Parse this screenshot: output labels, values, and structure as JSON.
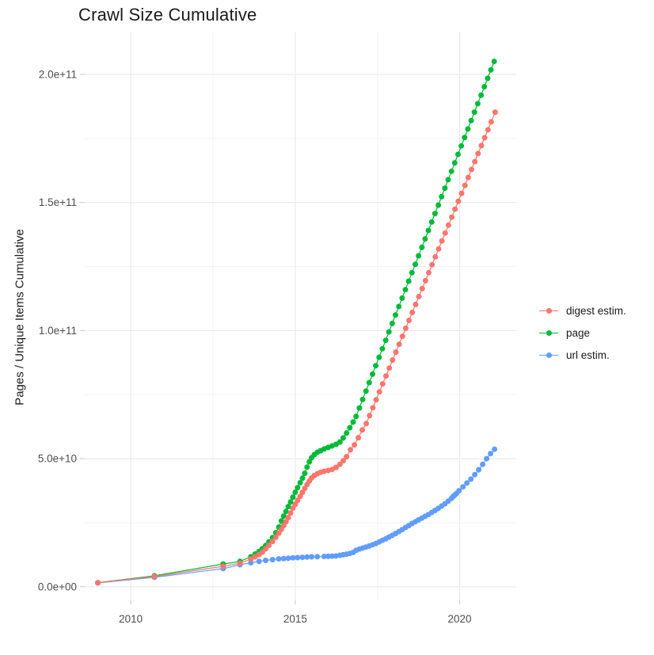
{
  "title": "Crawl Size Cumulative",
  "chart_data": {
    "type": "scatter-line",
    "title": "Crawl Size Cumulative",
    "xlabel": "",
    "ylabel": "Pages / Unique Items Cumulative",
    "legend_position": "right",
    "grid": true,
    "xlim": [
      2008.6,
      2021.72
    ],
    "ylim_e9": [
      -5.3,
      216.7
    ],
    "x_ticks": [
      {
        "value": 2010,
        "label": "2010"
      },
      {
        "value": 2015,
        "label": "2015"
      },
      {
        "value": 2020,
        "label": "2020"
      }
    ],
    "x_minor": [
      2012.5,
      2017.5
    ],
    "y_ticks_e9": [
      {
        "value": 0,
        "label": "0.0e+00"
      },
      {
        "value": 50,
        "label": "5.0e+10"
      },
      {
        "value": 100,
        "label": "1.0e+11"
      },
      {
        "value": 150,
        "label": "1.5e+11"
      },
      {
        "value": 200,
        "label": "2.0e+11"
      }
    ],
    "y_minor_e9": [
      25,
      75,
      125,
      175
    ],
    "value_unit": 1000000000.0,
    "colors": {
      "grid_major": "#ebebeb",
      "grid_minor": "#f3f3f3",
      "tick": "#c9c9c9",
      "tick_label": "#4d4d4d"
    },
    "series": [
      {
        "name": "digest estim.",
        "color": "#F8766D",
        "points_year_e9": [
          [
            2009.0,
            1.6
          ],
          [
            2010.72,
            4.0
          ],
          [
            2012.81,
            8.0
          ],
          [
            2013.32,
            9.2
          ],
          [
            2013.65,
            10.8
          ],
          [
            2013.78,
            11.7
          ],
          [
            2013.9,
            12.6
          ],
          [
            2014.0,
            13.5
          ],
          [
            2014.1,
            14.8
          ],
          [
            2014.2,
            16.2
          ],
          [
            2014.31,
            17.7
          ],
          [
            2014.41,
            19.3
          ],
          [
            2014.5,
            20.9
          ],
          [
            2014.58,
            22.4
          ],
          [
            2014.65,
            23.9
          ],
          [
            2014.72,
            25.4
          ],
          [
            2014.79,
            27.0
          ],
          [
            2014.86,
            28.8
          ],
          [
            2014.93,
            30.7
          ],
          [
            2015.0,
            32.2
          ],
          [
            2015.07,
            33.7
          ],
          [
            2015.15,
            35.3
          ],
          [
            2015.22,
            36.9
          ],
          [
            2015.29,
            38.4
          ],
          [
            2015.36,
            39.9
          ],
          [
            2015.43,
            41.3
          ],
          [
            2015.5,
            42.5
          ],
          [
            2015.58,
            43.4
          ],
          [
            2015.67,
            44.1
          ],
          [
            2015.77,
            44.7
          ],
          [
            2015.88,
            45.1
          ],
          [
            2016.0,
            45.4
          ],
          [
            2016.12,
            45.8
          ],
          [
            2016.24,
            46.6
          ],
          [
            2016.36,
            47.8
          ],
          [
            2016.46,
            49.2
          ],
          [
            2016.56,
            50.8
          ],
          [
            2016.68,
            53.5
          ],
          [
            2016.8,
            55.4
          ],
          [
            2016.92,
            58.2
          ],
          [
            2017.04,
            61.2
          ],
          [
            2017.16,
            63.7
          ],
          [
            2017.26,
            66.8
          ],
          [
            2017.36,
            69.9
          ],
          [
            2017.46,
            73.0
          ],
          [
            2017.56,
            76.1
          ],
          [
            2017.66,
            79.2
          ],
          [
            2017.76,
            82.3
          ],
          [
            2017.86,
            85.4
          ],
          [
            2017.96,
            88.5
          ],
          [
            2018.06,
            91.6
          ],
          [
            2018.16,
            94.7
          ],
          [
            2018.26,
            97.8
          ],
          [
            2018.36,
            100.9
          ],
          [
            2018.46,
            104.0
          ],
          [
            2018.56,
            107.1
          ],
          [
            2018.66,
            110.2
          ],
          [
            2018.76,
            113.3
          ],
          [
            2018.86,
            116.4
          ],
          [
            2018.96,
            119.5
          ],
          [
            2019.06,
            122.6
          ],
          [
            2019.16,
            125.7
          ],
          [
            2019.26,
            128.8
          ],
          [
            2019.36,
            131.9
          ],
          [
            2019.46,
            135.0
          ],
          [
            2019.56,
            138.1
          ],
          [
            2019.66,
            141.2
          ],
          [
            2019.76,
            144.3
          ],
          [
            2019.86,
            147.4
          ],
          [
            2019.96,
            150.5
          ],
          [
            2020.06,
            153.6
          ],
          [
            2020.16,
            156.7
          ],
          [
            2020.26,
            159.8
          ],
          [
            2020.36,
            162.9
          ],
          [
            2020.46,
            166.0
          ],
          [
            2020.56,
            169.1
          ],
          [
            2020.66,
            172.2
          ],
          [
            2020.76,
            175.3
          ],
          [
            2020.86,
            178.4
          ],
          [
            2020.96,
            181.5
          ],
          [
            2021.08,
            185.3
          ]
        ]
      },
      {
        "name": "page",
        "color": "#00BA38",
        "points_year_e9": [
          [
            2009.0,
            1.6
          ],
          [
            2010.72,
            4.3
          ],
          [
            2012.81,
            8.9
          ],
          [
            2013.32,
            9.9
          ],
          [
            2013.65,
            11.7
          ],
          [
            2013.78,
            12.8
          ],
          [
            2013.9,
            13.8
          ],
          [
            2014.0,
            14.9
          ],
          [
            2014.1,
            16.1
          ],
          [
            2014.2,
            17.5
          ],
          [
            2014.31,
            19.2
          ],
          [
            2014.41,
            21.1
          ],
          [
            2014.5,
            23.3
          ],
          [
            2014.58,
            25.7
          ],
          [
            2014.65,
            27.6
          ],
          [
            2014.72,
            29.4
          ],
          [
            2014.79,
            31.3
          ],
          [
            2014.86,
            33.1
          ],
          [
            2014.93,
            35.0
          ],
          [
            2015.0,
            36.9
          ],
          [
            2015.07,
            38.7
          ],
          [
            2015.15,
            40.6
          ],
          [
            2015.22,
            42.4
          ],
          [
            2015.29,
            44.3
          ],
          [
            2015.36,
            46.7
          ],
          [
            2015.43,
            48.8
          ],
          [
            2015.5,
            50.4
          ],
          [
            2015.58,
            51.6
          ],
          [
            2015.67,
            52.5
          ],
          [
            2015.77,
            53.1
          ],
          [
            2015.88,
            53.8
          ],
          [
            2016.0,
            54.4
          ],
          [
            2016.12,
            55.0
          ],
          [
            2016.24,
            55.6
          ],
          [
            2016.36,
            56.5
          ],
          [
            2016.46,
            58.1
          ],
          [
            2016.56,
            60.0
          ],
          [
            2016.66,
            62.1
          ],
          [
            2016.76,
            64.3
          ],
          [
            2016.85,
            66.5
          ],
          [
            2016.95,
            69.8
          ],
          [
            2017.05,
            73.1
          ],
          [
            2017.15,
            76.4
          ],
          [
            2017.25,
            79.7
          ],
          [
            2017.35,
            83.0
          ],
          [
            2017.45,
            86.3
          ],
          [
            2017.55,
            89.6
          ],
          [
            2017.65,
            92.9
          ],
          [
            2017.75,
            96.2
          ],
          [
            2017.85,
            99.5
          ],
          [
            2017.95,
            102.8
          ],
          [
            2018.05,
            106.1
          ],
          [
            2018.15,
            109.4
          ],
          [
            2018.25,
            112.7
          ],
          [
            2018.35,
            116.0
          ],
          [
            2018.45,
            119.3
          ],
          [
            2018.55,
            122.6
          ],
          [
            2018.65,
            125.9
          ],
          [
            2018.75,
            129.2
          ],
          [
            2018.85,
            132.5
          ],
          [
            2018.95,
            135.8
          ],
          [
            2019.05,
            139.1
          ],
          [
            2019.15,
            142.4
          ],
          [
            2019.25,
            145.7
          ],
          [
            2019.35,
            149.0
          ],
          [
            2019.45,
            152.3
          ],
          [
            2019.55,
            155.6
          ],
          [
            2019.65,
            158.9
          ],
          [
            2019.75,
            162.2
          ],
          [
            2019.85,
            165.5
          ],
          [
            2019.95,
            168.8
          ],
          [
            2020.05,
            172.1
          ],
          [
            2020.15,
            175.4
          ],
          [
            2020.25,
            178.7
          ],
          [
            2020.35,
            182.0
          ],
          [
            2020.45,
            185.3
          ],
          [
            2020.55,
            188.6
          ],
          [
            2020.65,
            191.9
          ],
          [
            2020.75,
            195.2
          ],
          [
            2020.85,
            198.5
          ],
          [
            2020.95,
            201.8
          ],
          [
            2021.05,
            205.1
          ]
        ]
      },
      {
        "name": "url estim.",
        "color": "#619CFF",
        "points_year_e9": [
          [
            2009.0,
            1.5
          ],
          [
            2010.72,
            3.7
          ],
          [
            2012.81,
            7.1
          ],
          [
            2013.32,
            8.6
          ],
          [
            2013.65,
            9.4
          ],
          [
            2013.9,
            9.9
          ],
          [
            2014.1,
            10.3
          ],
          [
            2014.31,
            10.6
          ],
          [
            2014.5,
            10.9
          ],
          [
            2014.65,
            11.0
          ],
          [
            2014.79,
            11.15
          ],
          [
            2014.93,
            11.3
          ],
          [
            2015.07,
            11.4
          ],
          [
            2015.22,
            11.5
          ],
          [
            2015.36,
            11.6
          ],
          [
            2015.5,
            11.7
          ],
          [
            2015.67,
            11.75
          ],
          [
            2015.88,
            11.85
          ],
          [
            2016.0,
            11.9
          ],
          [
            2016.12,
            11.95
          ],
          [
            2016.24,
            12.0
          ],
          [
            2016.36,
            12.3
          ],
          [
            2016.46,
            12.5
          ],
          [
            2016.56,
            12.7
          ],
          [
            2016.66,
            13.0
          ],
          [
            2016.76,
            13.4
          ],
          [
            2016.85,
            14.2
          ],
          [
            2016.95,
            14.7
          ],
          [
            2017.05,
            15.1
          ],
          [
            2017.15,
            15.5
          ],
          [
            2017.25,
            15.9
          ],
          [
            2017.35,
            16.4
          ],
          [
            2017.45,
            16.9
          ],
          [
            2017.55,
            17.5
          ],
          [
            2017.65,
            18.1
          ],
          [
            2017.75,
            18.7
          ],
          [
            2017.85,
            19.4
          ],
          [
            2017.95,
            20.1
          ],
          [
            2018.05,
            20.8
          ],
          [
            2018.15,
            21.5
          ],
          [
            2018.25,
            22.3
          ],
          [
            2018.35,
            23.1
          ],
          [
            2018.45,
            23.9
          ],
          [
            2018.55,
            24.7
          ],
          [
            2018.65,
            25.4
          ],
          [
            2018.75,
            26.1
          ],
          [
            2018.85,
            26.8
          ],
          [
            2018.95,
            27.5
          ],
          [
            2019.05,
            28.2
          ],
          [
            2019.15,
            29.0
          ],
          [
            2019.25,
            29.8
          ],
          [
            2019.35,
            30.6
          ],
          [
            2019.45,
            31.5
          ],
          [
            2019.55,
            32.4
          ],
          [
            2019.65,
            33.4
          ],
          [
            2019.75,
            34.5
          ],
          [
            2019.8,
            35.2
          ],
          [
            2019.85,
            35.8
          ],
          [
            2019.9,
            36.4
          ],
          [
            2019.98,
            37.5
          ],
          [
            2020.1,
            39.0
          ],
          [
            2020.22,
            40.5
          ],
          [
            2020.34,
            42.0
          ],
          [
            2020.46,
            43.8
          ],
          [
            2020.58,
            45.7
          ],
          [
            2020.7,
            47.8
          ],
          [
            2020.82,
            50.0
          ],
          [
            2020.94,
            52.0
          ],
          [
            2021.06,
            53.7
          ]
        ]
      }
    ]
  }
}
